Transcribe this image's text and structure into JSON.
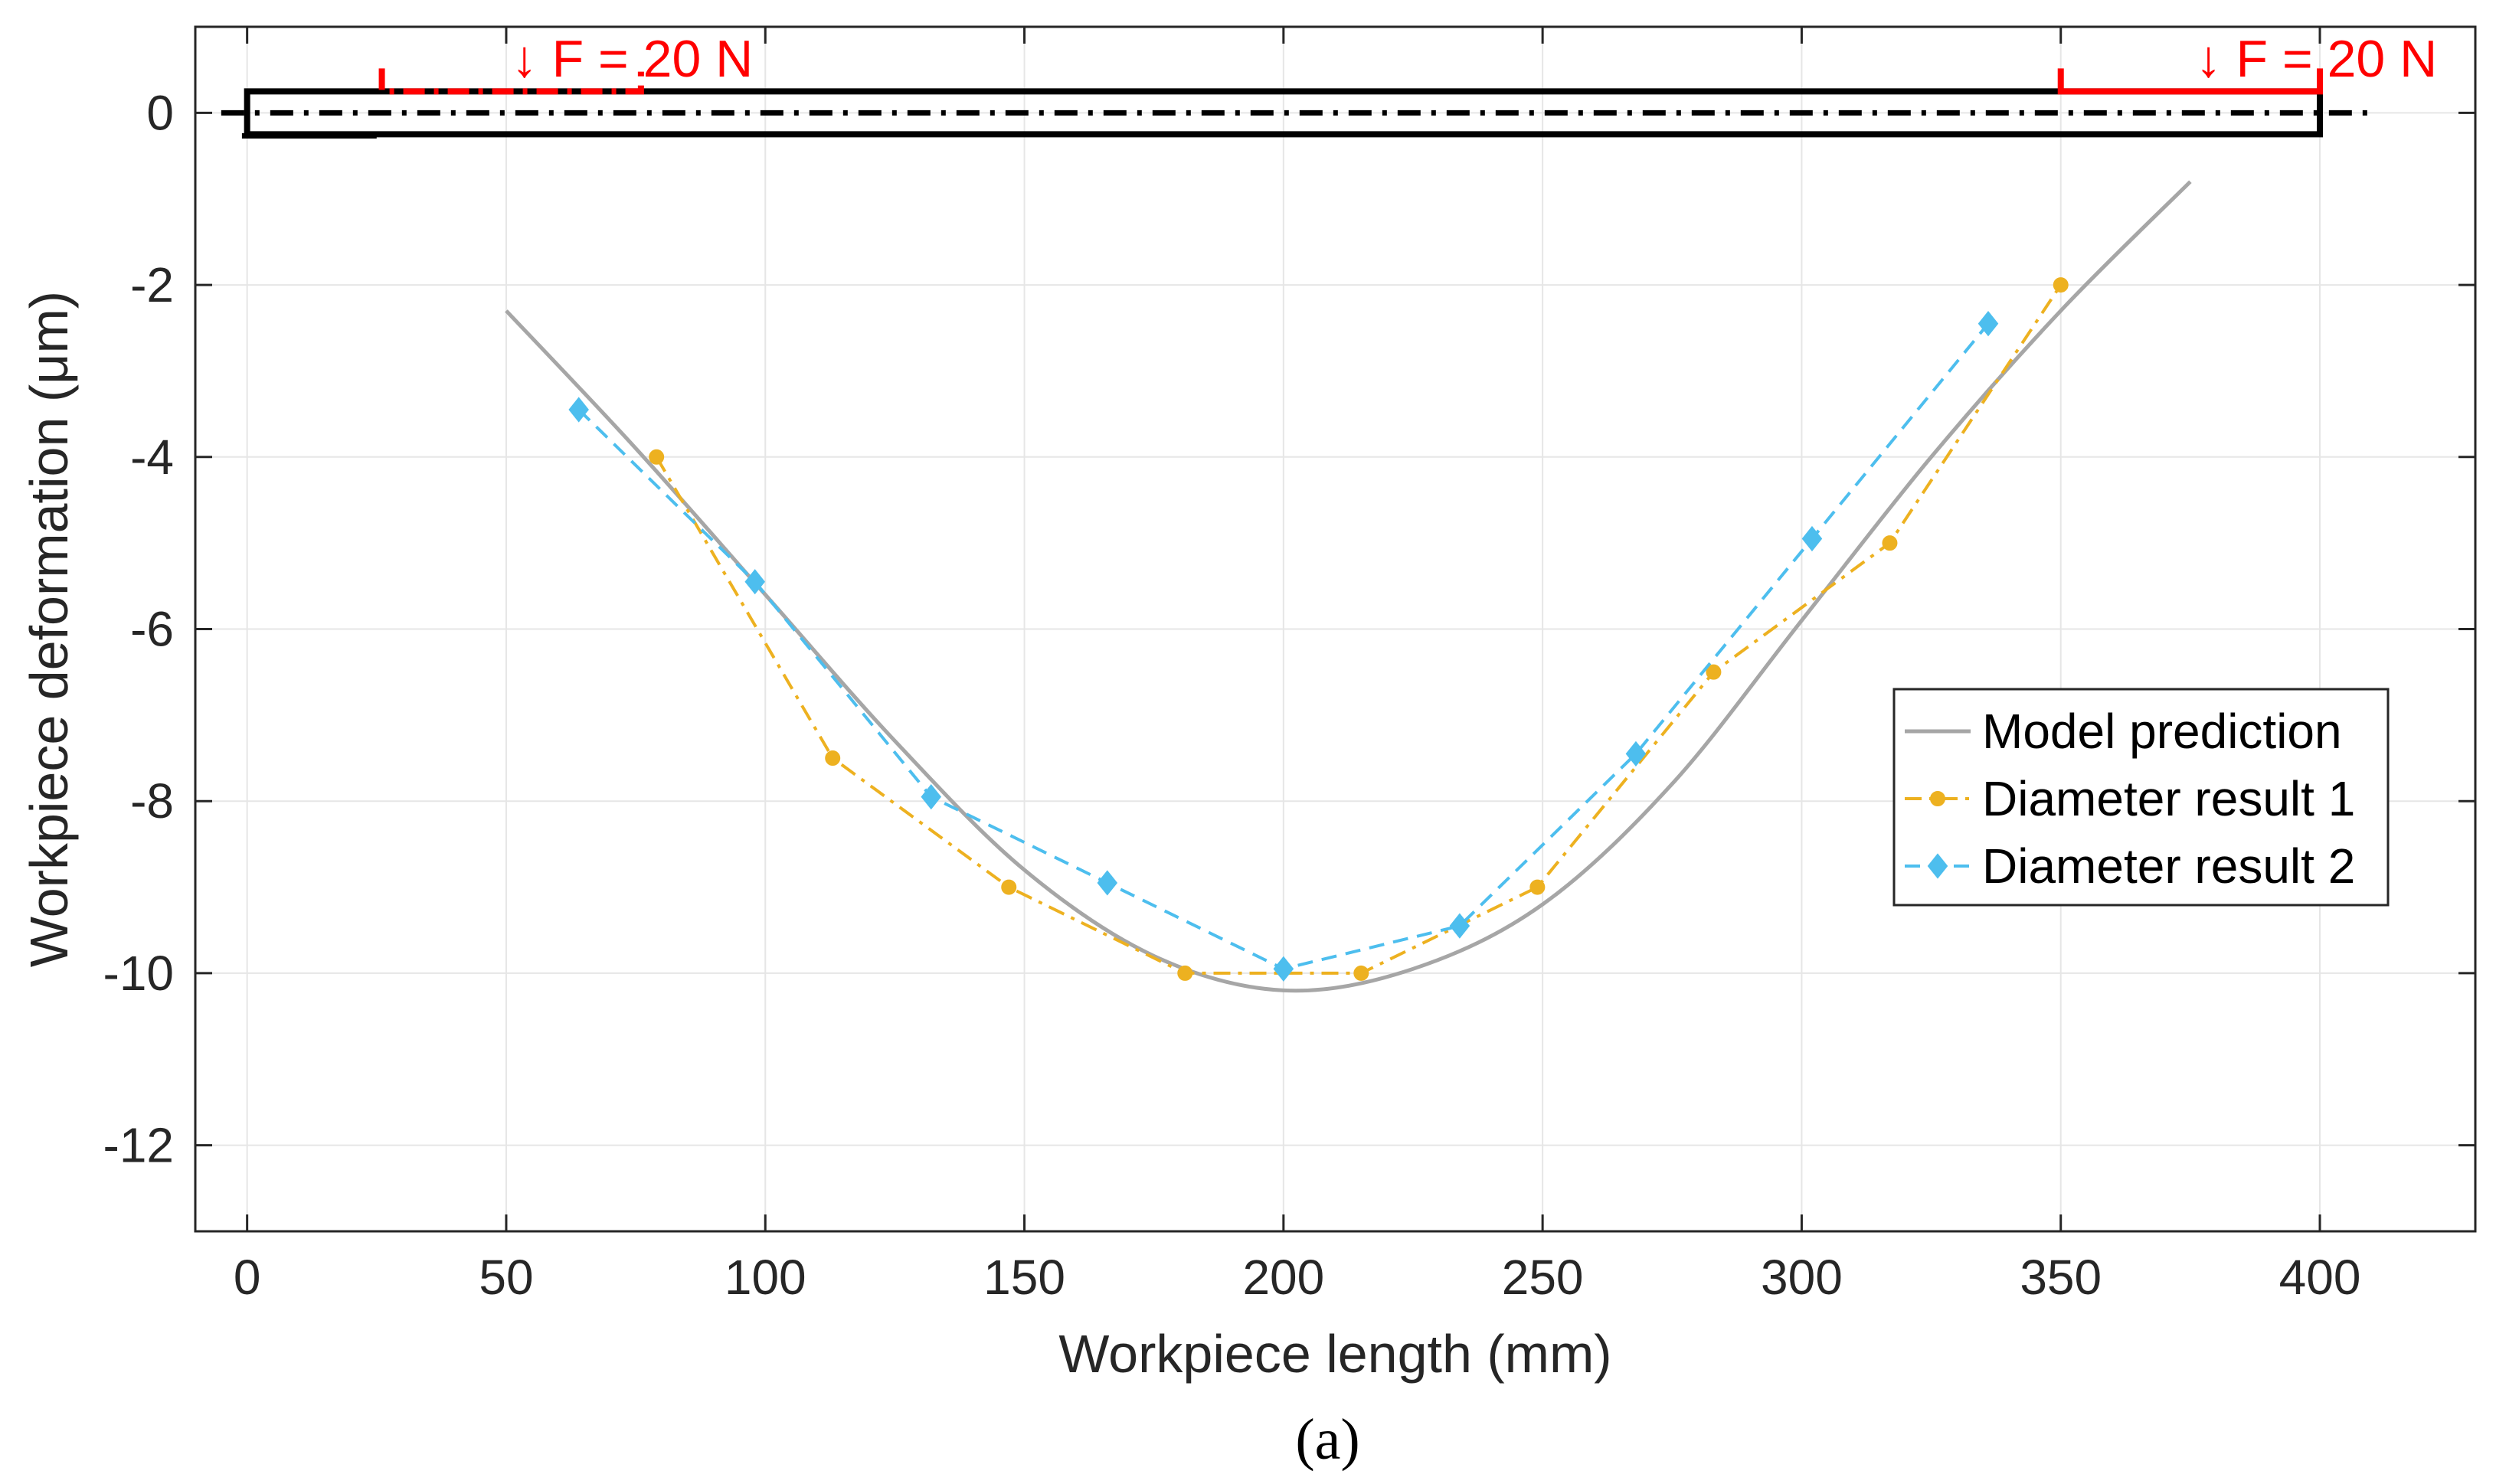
{
  "colors": {
    "model": "#a6a6a6",
    "result1": "#edb120",
    "result2": "#4dbeee",
    "force": "#ff0000",
    "workpiece": "#000000",
    "grid": "#e6e6e6"
  },
  "force_labels": {
    "left": "↓ F = 20 N",
    "right": "↓ F = 20 N"
  },
  "caption": "(a)",
  "chart_data": {
    "type": "line",
    "title": "",
    "xlabel": "Workpiece length (mm)",
    "ylabel": "Workpiece deformation (μm)",
    "xlim": [
      -10,
      430
    ],
    "ylim": [
      -13,
      1
    ],
    "xticks": [
      0,
      50,
      100,
      150,
      200,
      250,
      300,
      350,
      400
    ],
    "yticks": [
      0,
      -2,
      -4,
      -6,
      -8,
      -10,
      -12
    ],
    "xtick_labels": [
      "0",
      "50",
      "100",
      "150",
      "200",
      "250",
      "300",
      "350",
      "400"
    ],
    "ytick_labels": [
      "0",
      "-2",
      "-4",
      "-6",
      "-8",
      "-10",
      "-12"
    ],
    "grid": true,
    "legend_position": "right",
    "series": [
      {
        "name": "Model prediction",
        "style": "solid",
        "marker": "none",
        "x": [
          50,
          75,
          100,
          125,
          150,
          175,
          200,
          225,
          250,
          275,
          300,
          325,
          350,
          375
        ],
        "y": [
          -2.3,
          -3.9,
          -5.6,
          -7.3,
          -8.8,
          -9.8,
          -10.2,
          -9.95,
          -9.2,
          -7.8,
          -5.9,
          -4.0,
          -2.3,
          -0.8
        ]
      },
      {
        "name": "Diameter result 1",
        "style": "dashdot",
        "marker": "circle",
        "x": [
          79,
          113,
          147,
          181,
          215,
          249,
          283,
          317,
          350
        ],
        "y": [
          -4.0,
          -7.5,
          -9.0,
          -10.0,
          -10.0,
          -9.0,
          -6.5,
          -5.0,
          -2.0
        ]
      },
      {
        "name": "Diameter result 2",
        "style": "dashed",
        "marker": "diamond",
        "x": [
          64,
          98,
          132,
          166,
          200,
          234,
          268,
          302,
          336
        ],
        "y": [
          -3.45,
          -5.45,
          -7.95,
          -8.95,
          -9.95,
          -9.45,
          -7.45,
          -4.95,
          -2.45
        ]
      }
    ]
  }
}
